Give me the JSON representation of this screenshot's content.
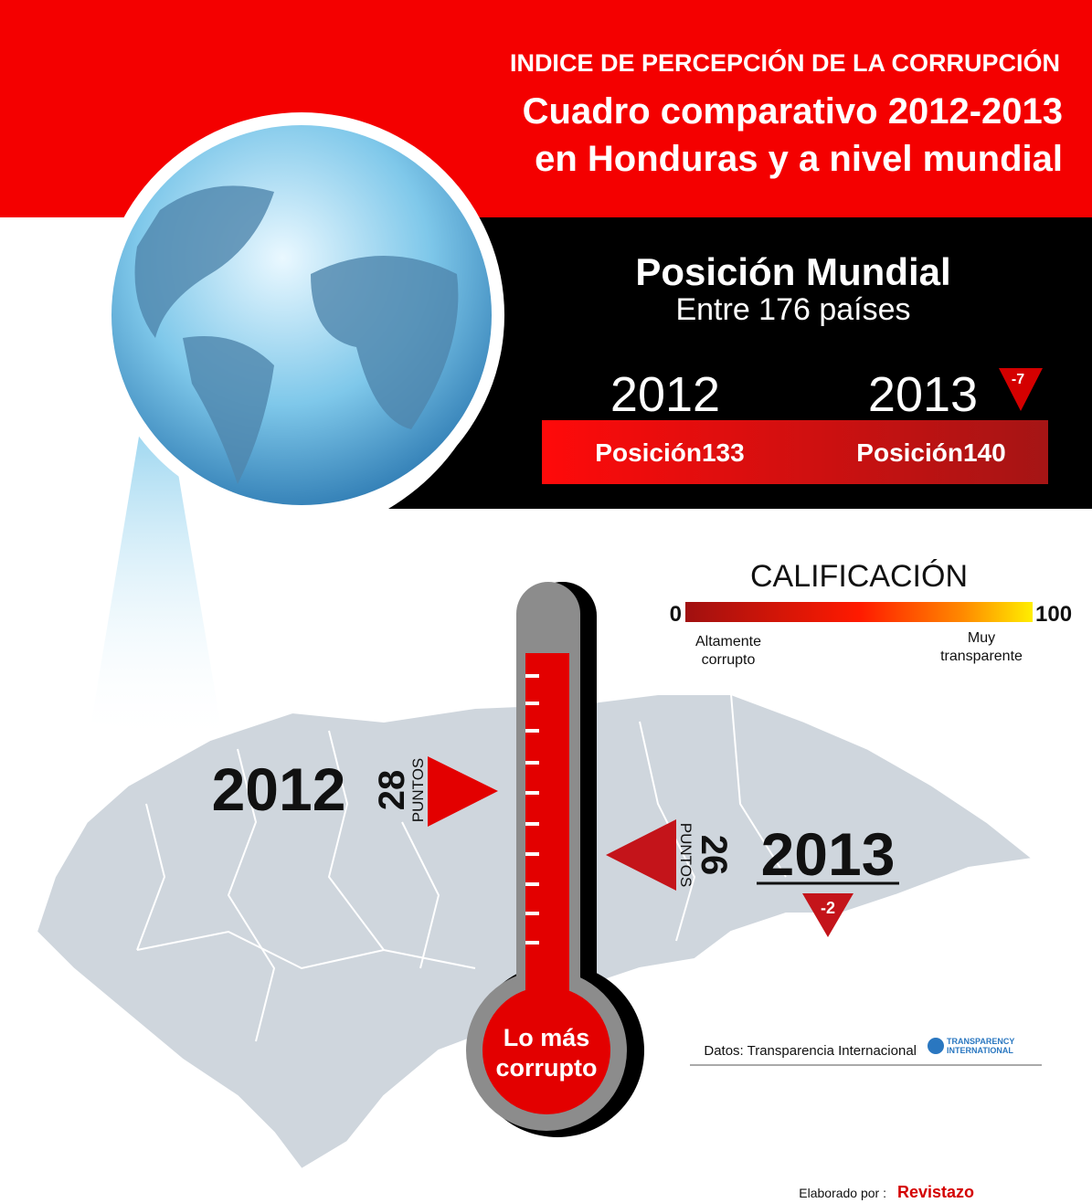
{
  "header": {
    "kicker": "INDICE DE PERCEPCIÓN DE LA CORRUPCIÓN",
    "title_line1": "Cuadro comparativo 2012-2013",
    "title_line2": "en Honduras y a nivel mundial"
  },
  "world_position": {
    "title": "Posición Mundial",
    "subtitle": "Entre 176 países",
    "years": [
      {
        "year": "2012",
        "position": "Posición133"
      },
      {
        "year": "2013",
        "position": "Posición140",
        "change": "-7"
      }
    ]
  },
  "rating_scale": {
    "title": "CALIFICACIÓN",
    "min": "0",
    "max": "100",
    "min_label_line1": "Altamente",
    "min_label_line2": "corrupto",
    "max_label_line1": "Muy",
    "max_label_line2": "transparente"
  },
  "honduras_scores": [
    {
      "year": "2012",
      "points": "28",
      "unit": "PUNTOS"
    },
    {
      "year": "2013",
      "points": "26",
      "unit": "PUNTOS",
      "change": "-2"
    }
  ],
  "thermometer_label": {
    "line1": "Lo más",
    "line2": "corrupto"
  },
  "footer": {
    "source": "Datos: Transparencia Internacional",
    "logo_line1": "TRANSPARENCY",
    "logo_line2": "INTERNATIONAL",
    "credit": "Elaborado por :",
    "brand": "Revistazo"
  }
}
